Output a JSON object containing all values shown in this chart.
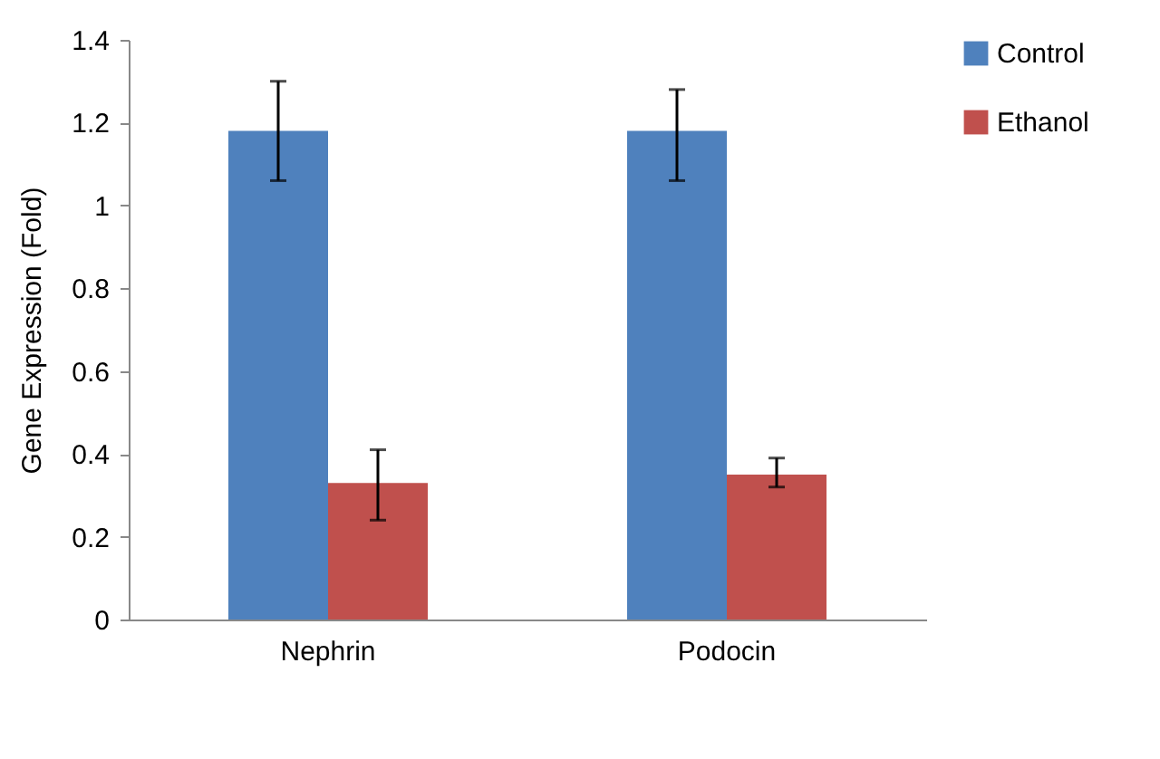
{
  "chart_data": {
    "type": "bar",
    "ylabel": "Gene Expression (Fold)",
    "categories": [
      "Nephrin",
      "Podocin"
    ],
    "series": [
      {
        "name": "Control",
        "color": "#4f81bd",
        "values": [
          1.18,
          1.18
        ],
        "errors": [
          [
            1.06,
            1.3
          ],
          [
            1.06,
            1.28
          ]
        ]
      },
      {
        "name": "Ethanol",
        "color": "#c0504d",
        "values": [
          0.33,
          0.35
        ],
        "errors": [
          [
            0.24,
            0.41
          ],
          [
            0.32,
            0.39
          ]
        ]
      }
    ],
    "ylim": [
      0,
      1.4
    ],
    "yticks": [
      0,
      0.2,
      0.4,
      0.6,
      0.8,
      1,
      1.2,
      1.4
    ],
    "grid": false,
    "legend": "right"
  }
}
